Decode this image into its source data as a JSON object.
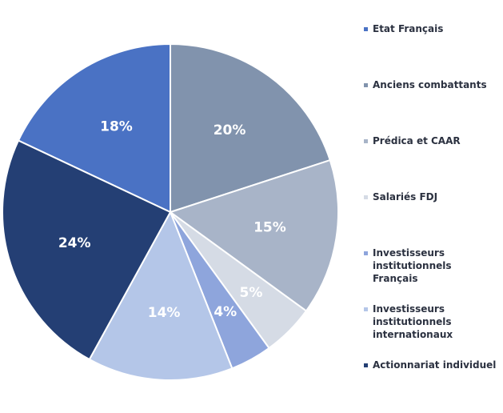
{
  "chart_data": {
    "type": "pie",
    "categories": [
      "Etat Français",
      "Anciens combattants",
      "Prédica et CAAR",
      "Salariés FDJ",
      "Investisseurs institutionnels Français",
      "Investisseurs institutionnels internationaux",
      "Actionnariat individuel"
    ],
    "values": [
      18,
      20,
      15,
      5,
      4,
      14,
      24
    ],
    "value_labels": [
      "18%",
      "20%",
      "15%",
      "5%",
      "4%",
      "14%",
      "24%"
    ],
    "colors": [
      "#4a72c4",
      "#8193ad",
      "#a8b4c8",
      "#d5dbe5",
      "#8ea5dc",
      "#b4c6e8",
      "#243f74"
    ]
  }
}
